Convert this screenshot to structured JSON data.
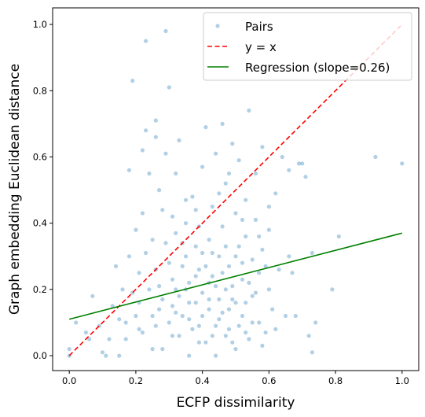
{
  "chart_data": {
    "type": "scatter",
    "title": "",
    "xlabel": "ECFP dissimilarity",
    "ylabel": "Graph embedding Euclidean distance",
    "xlim": [
      -0.05,
      1.05
    ],
    "ylim": [
      -0.045,
      1.05
    ],
    "xticks": [
      0.0,
      0.2,
      0.4,
      0.6,
      0.8,
      1.0
    ],
    "yticks": [
      0.0,
      0.2,
      0.4,
      0.6,
      0.8,
      1.0
    ],
    "xtick_labels": [
      "0.0",
      "0.2",
      "0.4",
      "0.6",
      "0.8",
      "1.0"
    ],
    "ytick_labels": [
      "0.0",
      "0.2",
      "0.4",
      "0.6",
      "0.8",
      "1.0"
    ],
    "grid": false,
    "legend_position": "top-right",
    "legend": [
      "Pairs",
      "y = x",
      "Regression (slope=0.26)"
    ],
    "colors": {
      "points": "#1f77b4",
      "identity_line": "#ff0000",
      "regression_line": "#008000",
      "axes": "#000000"
    },
    "points_opacity": 0.35,
    "series": [
      {
        "name": "Pairs",
        "kind": "scatter",
        "points": [
          [
            0.0,
            0.02
          ],
          [
            0.0,
            0.0
          ],
          [
            0.02,
            0.1
          ],
          [
            0.05,
            0.07
          ],
          [
            0.06,
            0.05
          ],
          [
            0.07,
            0.18
          ],
          [
            0.09,
            0.09
          ],
          [
            0.1,
            0.01
          ],
          [
            0.11,
            0.0
          ],
          [
            0.12,
            0.05
          ],
          [
            0.13,
            0.15
          ],
          [
            0.14,
            0.27
          ],
          [
            0.15,
            0.0
          ],
          [
            0.15,
            0.11
          ],
          [
            0.16,
            0.2
          ],
          [
            0.17,
            0.05
          ],
          [
            0.18,
            0.3
          ],
          [
            0.18,
            0.56
          ],
          [
            0.19,
            0.83
          ],
          [
            0.2,
            0.12
          ],
          [
            0.21,
            0.08
          ],
          [
            0.21,
            0.25
          ],
          [
            0.22,
            0.43
          ],
          [
            0.22,
            0.62
          ],
          [
            0.23,
            0.95
          ],
          [
            0.23,
            0.68
          ],
          [
            0.24,
            0.2
          ],
          [
            0.25,
            0.35
          ],
          [
            0.25,
            0.02
          ],
          [
            0.26,
            0.71
          ],
          [
            0.26,
            0.66
          ],
          [
            0.27,
            0.14
          ],
          [
            0.27,
            0.5
          ],
          [
            0.28,
            0.44
          ],
          [
            0.29,
            0.61
          ],
          [
            0.29,
            0.98
          ],
          [
            0.3,
            0.81
          ],
          [
            0.3,
            0.28
          ],
          [
            0.31,
            0.06
          ],
          [
            0.31,
            0.23
          ],
          [
            0.32,
            0.37
          ],
          [
            0.32,
            0.55
          ],
          [
            0.33,
            0.18
          ],
          [
            0.33,
            0.65
          ],
          [
            0.34,
            0.12
          ],
          [
            0.35,
            0.4
          ],
          [
            0.35,
            0.3
          ],
          [
            0.36,
            0.0
          ],
          [
            0.36,
            0.22
          ],
          [
            0.37,
            0.48
          ],
          [
            0.38,
            0.16
          ],
          [
            0.38,
            0.33
          ],
          [
            0.39,
            0.09
          ],
          [
            0.39,
            0.26
          ],
          [
            0.4,
            0.57
          ],
          [
            0.4,
            0.19
          ],
          [
            0.41,
            0.69
          ],
          [
            0.41,
            0.04
          ],
          [
            0.42,
            0.35
          ],
          [
            0.42,
            0.14
          ],
          [
            0.43,
            0.45
          ],
          [
            0.43,
            0.24
          ],
          [
            0.44,
            0.61
          ],
          [
            0.44,
            0.0
          ],
          [
            0.45,
            0.3
          ],
          [
            0.45,
            0.11
          ],
          [
            0.46,
            0.7
          ],
          [
            0.46,
            0.39
          ],
          [
            0.47,
            0.2
          ],
          [
            0.47,
            0.52
          ],
          [
            0.48,
            0.08
          ],
          [
            0.48,
            0.27
          ],
          [
            0.49,
            0.64
          ],
          [
            0.49,
            0.17
          ],
          [
            0.5,
            0.43
          ],
          [
            0.5,
            0.02
          ],
          [
            0.51,
            0.33
          ],
          [
            0.51,
            0.59
          ],
          [
            0.52,
            0.12
          ],
          [
            0.52,
            0.23
          ],
          [
            0.53,
            0.47
          ],
          [
            0.53,
            0.36
          ],
          [
            0.54,
            0.74
          ],
          [
            0.54,
            0.05
          ],
          [
            0.55,
            0.29
          ],
          [
            0.55,
            0.18
          ],
          [
            0.56,
            0.55
          ],
          [
            0.56,
            0.41
          ],
          [
            0.57,
            0.1
          ],
          [
            0.57,
            0.25
          ],
          [
            0.58,
            0.63
          ],
          [
            0.58,
            0.32
          ],
          [
            0.59,
            0.07
          ],
          [
            0.6,
            0.38
          ],
          [
            0.6,
            0.2
          ],
          [
            0.61,
            0.14
          ],
          [
            0.62,
            0.49
          ],
          [
            0.63,
            0.26
          ],
          [
            0.64,
            0.6
          ],
          [
            0.65,
            0.12
          ],
          [
            0.66,
            0.3
          ],
          [
            0.66,
            0.56
          ],
          [
            0.67,
            0.25
          ],
          [
            0.68,
            0.12
          ],
          [
            0.69,
            0.58
          ],
          [
            0.7,
            0.58
          ],
          [
            0.71,
            0.54
          ],
          [
            0.72,
            0.06
          ],
          [
            0.73,
            0.31
          ],
          [
            0.73,
            0.01
          ],
          [
            0.74,
            0.1
          ],
          [
            0.79,
            0.2
          ],
          [
            0.81,
            0.36
          ],
          [
            0.92,
            0.6
          ],
          [
            1.0,
            0.58
          ],
          [
            0.2,
            0.38
          ],
          [
            0.24,
            0.55
          ],
          [
            0.28,
            0.17
          ],
          [
            0.34,
            0.27
          ],
          [
            0.37,
            0.08
          ],
          [
            0.43,
            0.06
          ],
          [
            0.47,
            0.33
          ],
          [
            0.52,
            0.41
          ],
          [
            0.29,
            0.34
          ],
          [
            0.35,
            0.47
          ],
          [
            0.41,
            0.27
          ],
          [
            0.45,
            0.49
          ],
          [
            0.5,
            0.16
          ],
          [
            0.55,
            0.1
          ],
          [
            0.6,
            0.45
          ],
          [
            0.31,
            0.15
          ],
          [
            0.39,
            0.39
          ],
          [
            0.44,
            0.21
          ],
          [
            0.49,
            0.04
          ],
          [
            0.26,
            0.26
          ],
          [
            0.33,
            0.06
          ],
          [
            0.38,
            0.24
          ],
          [
            0.42,
            0.17
          ],
          [
            0.46,
            0.13
          ],
          [
            0.51,
            0.09
          ],
          [
            0.56,
            0.19
          ],
          [
            0.62,
            0.08
          ],
          [
            0.17,
            0.1
          ],
          [
            0.22,
            0.07
          ],
          [
            0.27,
            0.21
          ],
          [
            0.32,
            0.13
          ],
          [
            0.36,
            0.16
          ],
          [
            0.4,
            0.12
          ],
          [
            0.44,
            0.09
          ],
          [
            0.48,
            0.14
          ],
          [
            0.53,
            0.16
          ],
          [
            0.58,
            0.03
          ],
          [
            0.19,
            0.19
          ],
          [
            0.25,
            0.12
          ],
          [
            0.3,
            0.1
          ],
          [
            0.35,
            0.2
          ],
          [
            0.39,
            0.04
          ],
          [
            0.43,
            0.31
          ],
          [
            0.47,
            0.06
          ],
          [
            0.52,
            0.28
          ],
          [
            0.57,
            0.36
          ],
          [
            0.23,
            0.31
          ],
          [
            0.28,
            0.02
          ],
          [
            0.34,
            0.34
          ],
          [
            0.38,
            0.44
          ],
          [
            0.42,
            0.22
          ],
          [
            0.46,
            0.25
          ],
          [
            0.5,
            0.3
          ],
          [
            0.54,
            0.22
          ],
          [
            0.59,
            0.27
          ],
          [
            0.21,
            0.16
          ],
          [
            0.26,
            0.09
          ],
          [
            0.31,
            0.42
          ],
          [
            0.36,
            0.11
          ],
          [
            0.4,
            0.31
          ],
          [
            0.45,
            0.17
          ],
          [
            0.49,
            0.21
          ],
          [
            0.53,
            0.07
          ],
          [
            0.48,
            0.55
          ],
          [
            0.32,
            0.2
          ]
        ]
      },
      {
        "name": "y = x",
        "kind": "line",
        "style": "dashed",
        "x": [
          0.0,
          1.0
        ],
        "y": [
          0.0,
          1.0
        ]
      },
      {
        "name": "Regression (slope=0.26)",
        "kind": "line",
        "style": "solid",
        "x": [
          0.0,
          1.0
        ],
        "y": [
          0.11,
          0.37
        ]
      }
    ]
  }
}
